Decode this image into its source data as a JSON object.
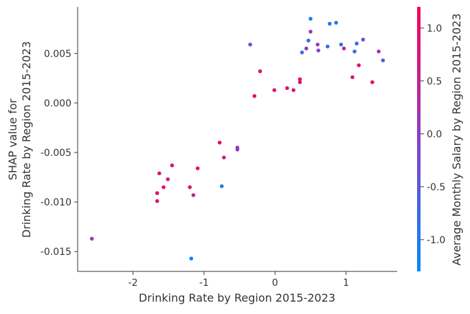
{
  "chart_data": {
    "type": "scatter",
    "title": "",
    "xlabel": "Drinking Rate by Region 2015-2023",
    "ylabel_lines": [
      "SHAP value for",
      "Drinking Rate by Region 2015-2023"
    ],
    "xlim": [
      -2.78,
      1.72
    ],
    "ylim": [
      -0.017,
      0.0097
    ],
    "xticks": [
      -2,
      -1,
      0,
      1
    ],
    "xtick_labels": [
      "-2",
      "-1",
      "0",
      "1"
    ],
    "yticks": [
      -0.015,
      -0.01,
      -0.005,
      0.0,
      0.005
    ],
    "ytick_labels": [
      "-0.015",
      "-0.010",
      "-0.005",
      "0.000",
      "0.005"
    ],
    "grid": false,
    "colorbar": {
      "label": "Average Monthly Salary by Region 2015-2023",
      "range": [
        -1.3,
        1.2
      ],
      "ticks": [
        -1.0,
        -0.5,
        0.0,
        0.5,
        1.0
      ],
      "tick_labels": [
        "-1.0",
        "-0.5",
        "0.0",
        "0.5",
        "1.0"
      ],
      "low_color": "#008afb",
      "high_color": "#ff0052"
    },
    "points": [
      {
        "x": -2.58,
        "y": -0.0137,
        "c": 0.05
      },
      {
        "x": -1.18,
        "y": -0.0157,
        "c": -1.2
      },
      {
        "x": -1.66,
        "y": -0.0099,
        "c": 0.95
      },
      {
        "x": -1.66,
        "y": -0.0091,
        "c": 0.95
      },
      {
        "x": -1.63,
        "y": -0.0071,
        "c": 0.8
      },
      {
        "x": -1.57,
        "y": -0.0085,
        "c": 0.8
      },
      {
        "x": -1.51,
        "y": -0.0077,
        "c": 0.7
      },
      {
        "x": -1.45,
        "y": -0.0063,
        "c": 0.8
      },
      {
        "x": -1.2,
        "y": -0.0085,
        "c": 0.9
      },
      {
        "x": -1.15,
        "y": -0.0093,
        "c": 0.6
      },
      {
        "x": -1.09,
        "y": -0.0066,
        "c": 0.9
      },
      {
        "x": -0.78,
        "y": -0.004,
        "c": 0.9
      },
      {
        "x": -0.75,
        "y": -0.0084,
        "c": -1.0
      },
      {
        "x": -0.72,
        "y": -0.0055,
        "c": 0.6
      },
      {
        "x": -0.53,
        "y": -0.0045,
        "c": 0.05
      },
      {
        "x": -0.53,
        "y": -0.0047,
        "c": 0.05
      },
      {
        "x": -0.35,
        "y": 0.0059,
        "c": -0.2
      },
      {
        "x": -0.29,
        "y": 0.0007,
        "c": 0.9
      },
      {
        "x": -0.21,
        "y": 0.0032,
        "c": 0.8
      },
      {
        "x": -0.01,
        "y": 0.0013,
        "c": 0.9
      },
      {
        "x": 0.17,
        "y": 0.0015,
        "c": 0.9
      },
      {
        "x": 0.26,
        "y": 0.0013,
        "c": 0.9
      },
      {
        "x": 0.35,
        "y": 0.0024,
        "c": 0.9
      },
      {
        "x": 0.35,
        "y": 0.0021,
        "c": 0.9
      },
      {
        "x": 0.38,
        "y": 0.0051,
        "c": -0.9
      },
      {
        "x": 0.44,
        "y": 0.0055,
        "c": 0.1
      },
      {
        "x": 0.47,
        "y": 0.0063,
        "c": -0.9
      },
      {
        "x": 0.5,
        "y": 0.0072,
        "c": 0.3
      },
      {
        "x": 0.5,
        "y": 0.0085,
        "c": -1.1
      },
      {
        "x": 0.6,
        "y": 0.0059,
        "c": 0.1
      },
      {
        "x": 0.61,
        "y": 0.0053,
        "c": -0.2
      },
      {
        "x": 0.74,
        "y": 0.0057,
        "c": -0.9
      },
      {
        "x": 0.77,
        "y": 0.008,
        "c": -1.1
      },
      {
        "x": 0.86,
        "y": 0.0081,
        "c": -1.0
      },
      {
        "x": 0.93,
        "y": 0.0059,
        "c": -0.9
      },
      {
        "x": 0.97,
        "y": 0.0055,
        "c": 0.5
      },
      {
        "x": 1.09,
        "y": 0.0026,
        "c": 0.8
      },
      {
        "x": 1.12,
        "y": 0.0052,
        "c": -0.8
      },
      {
        "x": 1.15,
        "y": 0.006,
        "c": -0.8
      },
      {
        "x": 1.18,
        "y": 0.0038,
        "c": 0.9
      },
      {
        "x": 1.24,
        "y": 0.0064,
        "c": -0.3
      },
      {
        "x": 1.37,
        "y": 0.0021,
        "c": 0.9
      },
      {
        "x": 1.46,
        "y": 0.0052,
        "c": 0.2
      },
      {
        "x": 1.52,
        "y": 0.0043,
        "c": -0.5
      }
    ]
  }
}
